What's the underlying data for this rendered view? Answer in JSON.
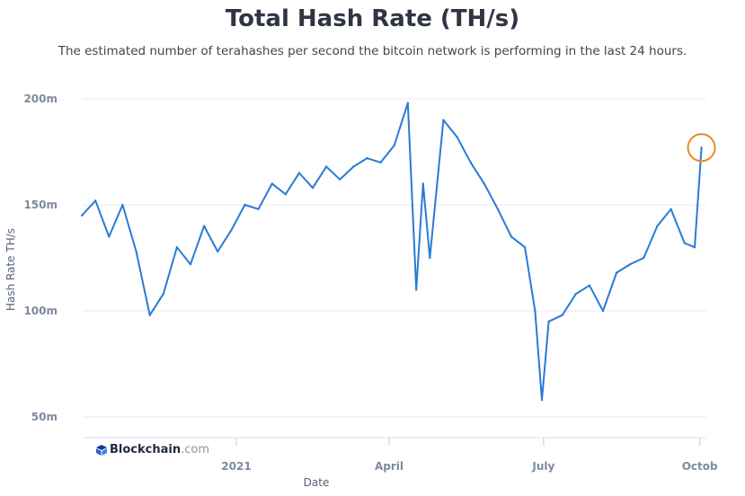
{
  "header": {
    "title": "Total Hash Rate (TH/s)",
    "subtitle": "The estimated number of terahashes per second the bitcoin network is performing in the last 24 hours."
  },
  "brand": {
    "name": "Blockchain",
    "tld": ".com",
    "icon": "blockchain-logo-icon"
  },
  "colors": {
    "line": "#2a7bd6",
    "highlight": "#e8892c",
    "grid": "#e6e9ef"
  },
  "chart_data": {
    "type": "line",
    "title": "Total Hash Rate (TH/s)",
    "xlabel": "Date",
    "ylabel": "Hash Rate TH/s",
    "ylim": [
      40,
      210
    ],
    "yticks": [
      50,
      100,
      150,
      200
    ],
    "ytick_labels": [
      "50m",
      "100m",
      "150m",
      "200m"
    ],
    "xticks": [
      {
        "date": "2021-01-01",
        "label": "2021"
      },
      {
        "date": "2021-04-01",
        "label": "April"
      },
      {
        "date": "2021-07-01",
        "label": "July"
      },
      {
        "date": "2021-10-01",
        "label": "Octob"
      }
    ],
    "grid": true,
    "legend": "none",
    "highlight": {
      "date": "2021-10-02",
      "value": 177
    },
    "series": [
      {
        "x": [
          "2020-10-02",
          "2020-10-10",
          "2020-10-18",
          "2020-10-26",
          "2020-11-03",
          "2020-11-11",
          "2020-11-19",
          "2020-11-27",
          "2020-12-05",
          "2020-12-13",
          "2020-12-21",
          "2020-12-29",
          "2021-01-06",
          "2021-01-14",
          "2021-01-22",
          "2021-01-30",
          "2021-02-07",
          "2021-02-15",
          "2021-02-23",
          "2021-03-03",
          "2021-03-11",
          "2021-03-19",
          "2021-03-27",
          "2021-04-04",
          "2021-04-12",
          "2021-04-17",
          "2021-04-21",
          "2021-04-25",
          "2021-05-03",
          "2021-05-11",
          "2021-05-19",
          "2021-05-27",
          "2021-06-04",
          "2021-06-12",
          "2021-06-20",
          "2021-06-26",
          "2021-06-30",
          "2021-07-04",
          "2021-07-12",
          "2021-07-20",
          "2021-07-28",
          "2021-08-05",
          "2021-08-13",
          "2021-08-21",
          "2021-08-29",
          "2021-09-06",
          "2021-09-14",
          "2021-09-22",
          "2021-09-28",
          "2021-10-02"
        ],
        "values": [
          145,
          152,
          135,
          150,
          128,
          98,
          108,
          130,
          122,
          140,
          128,
          138,
          150,
          148,
          160,
          155,
          165,
          158,
          168,
          162,
          168,
          172,
          170,
          178,
          198,
          110,
          160,
          125,
          190,
          182,
          170,
          160,
          148,
          135,
          130,
          100,
          58,
          95,
          98,
          108,
          112,
          100,
          118,
          122,
          125,
          140,
          148,
          132,
          130,
          177
        ]
      }
    ]
  }
}
